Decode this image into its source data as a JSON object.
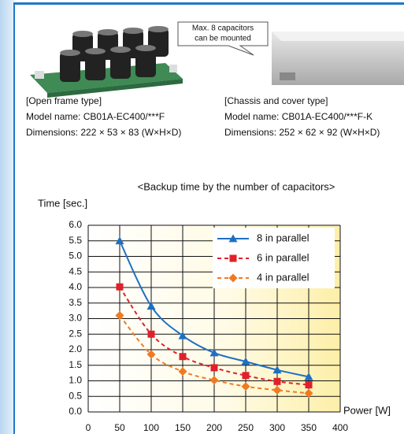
{
  "callout": [
    "Max. 8 capacitors",
    "can be mounted"
  ],
  "products": [
    {
      "type": "[Open frame type]",
      "model": "Model name: CB01A-EC400/***F",
      "dimensions": "Dimensions: 222 × 53 × 83 (W×H×D)"
    },
    {
      "type": "[Chassis and cover type]",
      "model": "Model name: CB01A-EC400/***F-K",
      "dimensions": "Dimensions: 252 × 62 × 92 (W×H×D)"
    }
  ],
  "chart_data": {
    "type": "line",
    "title": "<Backup time by the number of capacitors>",
    "y_label": "Time [sec.]",
    "x_label": "Power [W]",
    "x": [
      50,
      100,
      150,
      200,
      250,
      300,
      350
    ],
    "xlim": [
      0,
      400
    ],
    "xticks": [
      0,
      50,
      100,
      150,
      200,
      250,
      300,
      350,
      400
    ],
    "ylim": [
      0,
      6
    ],
    "yticks": [
      {
        "value": 0,
        "label": "0.0"
      },
      0.5,
      {
        "value": 1,
        "label": "1.0"
      },
      1.5,
      {
        "value": 2,
        "label": "2.0"
      },
      2.5,
      {
        "value": 3,
        "label": "3.0"
      },
      3.5,
      {
        "value": 4,
        "label": "4.0"
      },
      4.5,
      {
        "value": 5,
        "label": "5.0"
      },
      5.5,
      {
        "value": 6,
        "label": "6.0"
      }
    ],
    "grid": true,
    "legend": "upper right",
    "series": [
      {
        "name": "8 in parallel",
        "color": "#1e6fc4",
        "marker": "triangle",
        "dash": "solid",
        "values": [
          5.5,
          3.4,
          2.45,
          1.9,
          1.62,
          1.35,
          1.13
        ]
      },
      {
        "name": "6 in parallel",
        "color": "#e0202a",
        "marker": "square",
        "dash": "dashed",
        "values": [
          4.02,
          2.5,
          1.78,
          1.42,
          1.17,
          0.98,
          0.87
        ]
      },
      {
        "name": "4 in parallel",
        "color": "#f07a22",
        "marker": "diamond",
        "dash": "dashed",
        "values": [
          3.1,
          1.85,
          1.3,
          1.02,
          0.82,
          0.7,
          0.6
        ]
      }
    ]
  }
}
